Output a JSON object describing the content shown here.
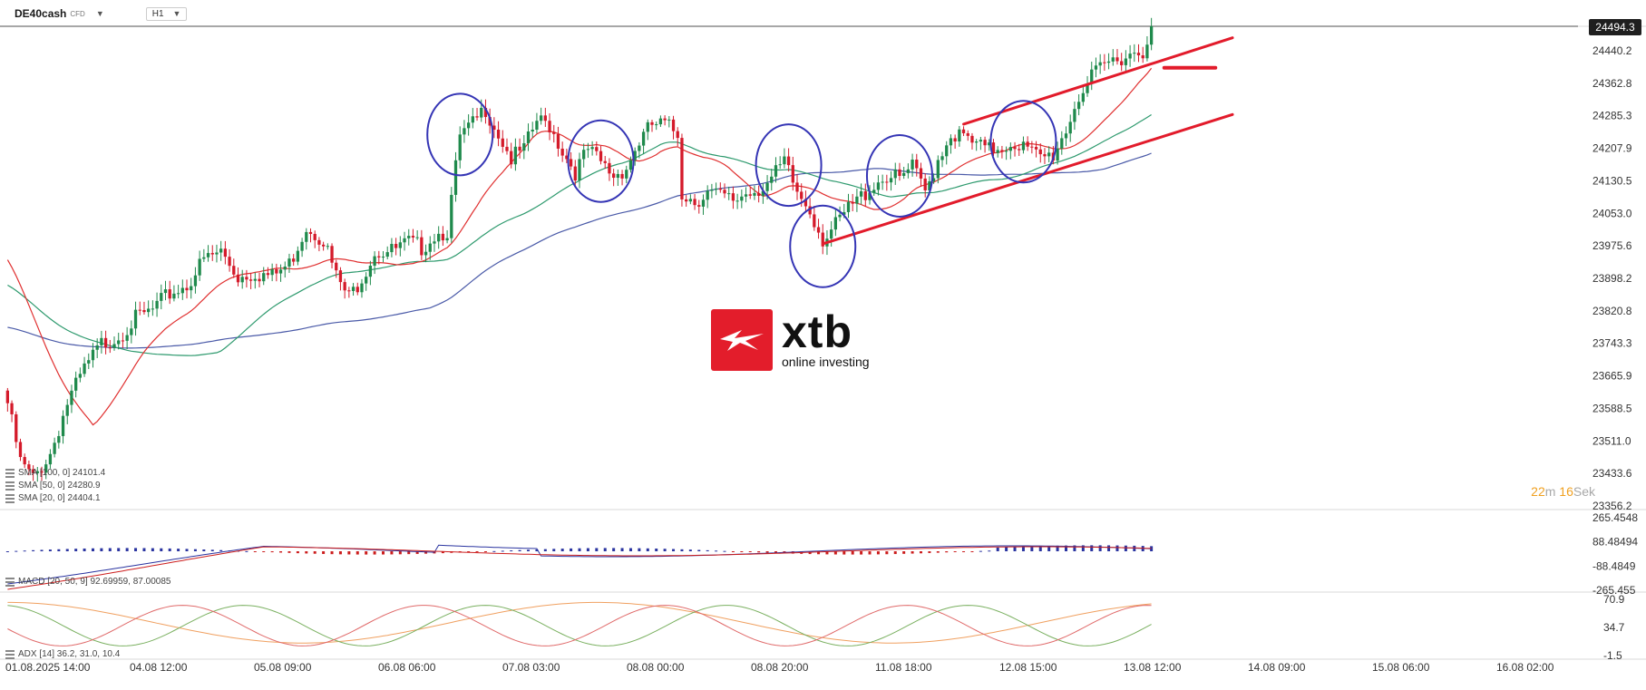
{
  "header": {
    "symbol": "DE40cash",
    "instrument_type": "CFD",
    "timeframe": "H1",
    "current_price": "24494.3"
  },
  "timer": {
    "minutes": "22",
    "m_label": "m",
    "seconds": "16",
    "s_label": "Sek"
  },
  "logo": {
    "name": "xtb",
    "tagline": "online investing"
  },
  "indicators": {
    "sma_long": "SMA [100, 0] 24101.4",
    "sma_mid": "SMA [50, 0] 24280.9",
    "sma_short": "SMA [20, 0] 24404.1",
    "macd": "MACD [20, 50, 9] 92.69959, 87.00085",
    "adx": "ADX [14] 36.2, 31.0, 10.4"
  },
  "colors": {
    "bull": "#1f8a4c",
    "bear": "#d41a2a",
    "sma20": "#e03030",
    "sma50": "#2e9a6e",
    "sma100": "#4a5aa8",
    "annotation_circle": "#3535b5",
    "annotation_line": "#e21b2b",
    "macd_blue": "#2a34a0",
    "macd_red": "#cc1e1e",
    "adx_orange": "#f0a060",
    "adx_green": "#7ab060",
    "adx_red": "#e06a6a"
  },
  "chart_data": [
    {
      "type": "candlestick",
      "title": "",
      "xlabel": "",
      "ylabel": "",
      "x_tick_labels": [
        "01.08.2025  14:00",
        "04.08  12:00",
        "05.08  09:00",
        "06.08  06:00",
        "07.08  03:00",
        "08.08  00:00",
        "08.08  20:00",
        "11.08  18:00",
        "12.08  15:00",
        "13.08  12:00",
        "14.08  09:00",
        "15.08  06:00",
        "16.08  02:00"
      ],
      "y_tick_labels": [
        "24440.2",
        "24362.8",
        "24285.3",
        "24207.9",
        "24130.5",
        "24053.0",
        "23975.6",
        "23898.2",
        "23820.8",
        "23743.3",
        "23665.9",
        "23588.5",
        "23511.0",
        "23433.6",
        "23356.2"
      ],
      "ylim": [
        23356.2,
        24494.3
      ],
      "last_price": 24494.3,
      "close_anchors": [
        [
          0,
          23600
        ],
        [
          3,
          23460
        ],
        [
          6,
          23420
        ],
        [
          10,
          23480
        ],
        [
          14,
          23600
        ],
        [
          18,
          23680
        ],
        [
          22,
          23740
        ],
        [
          26,
          23760
        ],
        [
          30,
          23800
        ],
        [
          34,
          23820
        ],
        [
          38,
          23860
        ],
        [
          42,
          23880
        ],
        [
          46,
          23940
        ],
        [
          50,
          23960
        ],
        [
          54,
          23900
        ],
        [
          58,
          23910
        ],
        [
          62,
          23900
        ],
        [
          66,
          23930
        ],
        [
          70,
          24020
        ],
        [
          74,
          23990
        ],
        [
          77,
          23900
        ],
        [
          80,
          23850
        ],
        [
          83,
          23900
        ],
        [
          86,
          23960
        ],
        [
          90,
          23960
        ],
        [
          94,
          23980
        ],
        [
          97,
          23970
        ],
        [
          100,
          24000
        ],
        [
          103,
          24010
        ],
        [
          106,
          24230
        ],
        [
          109,
          24260
        ],
        [
          112,
          24300
        ],
        [
          115,
          24240
        ],
        [
          118,
          24180
        ],
        [
          121,
          24200
        ],
        [
          124,
          24270
        ],
        [
          127,
          24260
        ],
        [
          130,
          24200
        ],
        [
          133,
          24150
        ],
        [
          136,
          24200
        ],
        [
          139,
          24170
        ],
        [
          142,
          24140
        ],
        [
          145,
          24160
        ],
        [
          148,
          24220
        ],
        [
          151,
          24260
        ],
        [
          154,
          24260
        ],
        [
          157,
          24240
        ],
        [
          158,
          24100
        ],
        [
          161,
          24080
        ],
        [
          164,
          24100
        ],
        [
          167,
          24090
        ],
        [
          170,
          24080
        ],
        [
          173,
          24100
        ],
        [
          176,
          24110
        ],
        [
          179,
          24130
        ],
        [
          182,
          24170
        ],
        [
          185,
          24100
        ],
        [
          188,
          24060
        ],
        [
          191,
          23990
        ],
        [
          194,
          24020
        ],
        [
          197,
          24060
        ],
        [
          200,
          24090
        ],
        [
          203,
          24120
        ],
        [
          206,
          24140
        ],
        [
          209,
          24130
        ],
        [
          212,
          24160
        ],
        [
          215,
          24100
        ],
        [
          218,
          24180
        ],
        [
          221,
          24240
        ],
        [
          224,
          24230
        ],
        [
          227,
          24210
        ],
        [
          230,
          24200
        ],
        [
          233,
          24210
        ],
        [
          236,
          24220
        ],
        [
          239,
          24200
        ],
        [
          242,
          24180
        ],
        [
          245,
          24190
        ],
        [
          248,
          24250
        ],
        [
          251,
          24330
        ],
        [
          254,
          24370
        ],
        [
          257,
          24400
        ],
        [
          260,
          24420
        ],
        [
          263,
          24430
        ],
        [
          266,
          24440
        ],
        [
          268,
          24494.3
        ]
      ],
      "overlays": [
        {
          "name": "SMA [20, 0]",
          "value": 24404.1
        },
        {
          "name": "SMA [50, 0]",
          "value": 24280.9
        },
        {
          "name": "SMA [100, 0]",
          "value": 24101.4
        }
      ],
      "trendlines": [
        {
          "from": [
            224,
            24262
          ],
          "to": [
            287,
            24467
          ]
        },
        {
          "from": [
            191,
            23978
          ],
          "to": [
            287,
            24285
          ]
        },
        {
          "from": [
            271,
            24396
          ],
          "to": [
            283,
            24396
          ]
        }
      ],
      "circled_regions": [
        106,
        139,
        183,
        191,
        209,
        238
      ]
    },
    {
      "type": "histogram",
      "indicator": "MACD [20, 50, 9]",
      "values": [
        92.69959,
        87.00085
      ],
      "y_tick_labels": [
        "265.4548",
        "88.48494",
        "-88.4849",
        "-265.455"
      ],
      "ylim": [
        -265.455,
        265.4548
      ]
    },
    {
      "type": "line",
      "indicator": "ADX [14]",
      "values": [
        36.2,
        31.0,
        10.4
      ],
      "y_tick_labels": [
        "70.9",
        "34.7",
        "-1.5"
      ],
      "ylim": [
        -1.5,
        70.9
      ]
    }
  ]
}
